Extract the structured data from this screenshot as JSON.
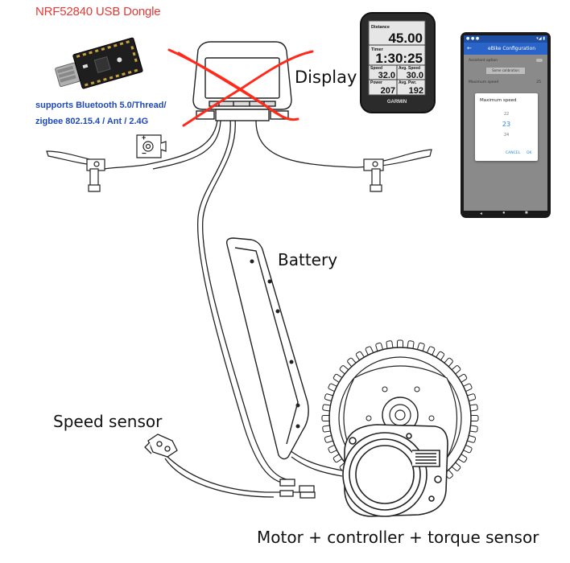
{
  "labels": {
    "dongle_title": "NRF52840 USB Dongle",
    "dongle_support_line1": "supports Bluetooth 5.0/Thread/",
    "dongle_support_line2": "zigbee 802.15.4 / Ant / 2.4G",
    "display": "Display",
    "battery": "Battery",
    "speed_sensor": "Speed sensor",
    "motor": "Motor + controller + torque sensor"
  },
  "garmin": {
    "brand": "GARMIN",
    "fields": [
      {
        "label": "Distance",
        "value": "45.00"
      },
      {
        "label": "Timer",
        "value": "1:30:25"
      },
      {
        "label": "Speed",
        "value": "32.0"
      },
      {
        "label": "Avg. Speed",
        "value": "30.0"
      },
      {
        "label": "Power",
        "value": "207"
      },
      {
        "label": "Avg. Pwr.",
        "value": "192"
      }
    ]
  },
  "phone": {
    "app_title": "eBike Configuration",
    "row1": "Assistant option",
    "button": "Some calibration",
    "row2": "Maximum speed",
    "row2_value": "25",
    "dialog": {
      "title": "Maximum speed",
      "options": [
        "22",
        "23",
        "24"
      ],
      "selected": "23",
      "cancel": "CANCEL",
      "ok": "OK"
    }
  },
  "colors": {
    "cross": "#ff2a1a",
    "dongle_title": "#e53935",
    "dongle_text": "#1f49b8",
    "phone_primary": "#2a64c8",
    "phone_selected": "#1e88e5"
  }
}
